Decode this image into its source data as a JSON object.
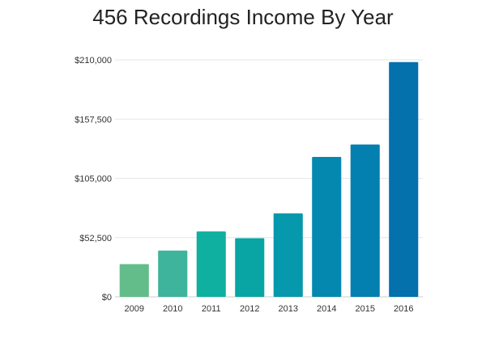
{
  "chart_data": {
    "type": "bar",
    "title": "456 Recordings Income By Year",
    "xlabel": "",
    "ylabel": "",
    "categories": [
      "2009",
      "2010",
      "2011",
      "2012",
      "2013",
      "2014",
      "2015",
      "2016"
    ],
    "values": [
      29000,
      41000,
      58000,
      52000,
      74000,
      124000,
      135000,
      208000
    ],
    "ylim": [
      0,
      210000
    ],
    "y_ticks": [
      0,
      52500,
      105000,
      157500,
      210000
    ],
    "y_tick_labels": [
      "$0",
      "$52,500",
      "$105,000",
      "$157,500",
      "$210,000"
    ],
    "grid": true,
    "legend": "none",
    "bar_colors": [
      "#63bd8a",
      "#3db49b",
      "#0fb0a0",
      "#08a5a4",
      "#0698ac",
      "#0588b0",
      "#0480b0",
      "#0470ac"
    ]
  }
}
